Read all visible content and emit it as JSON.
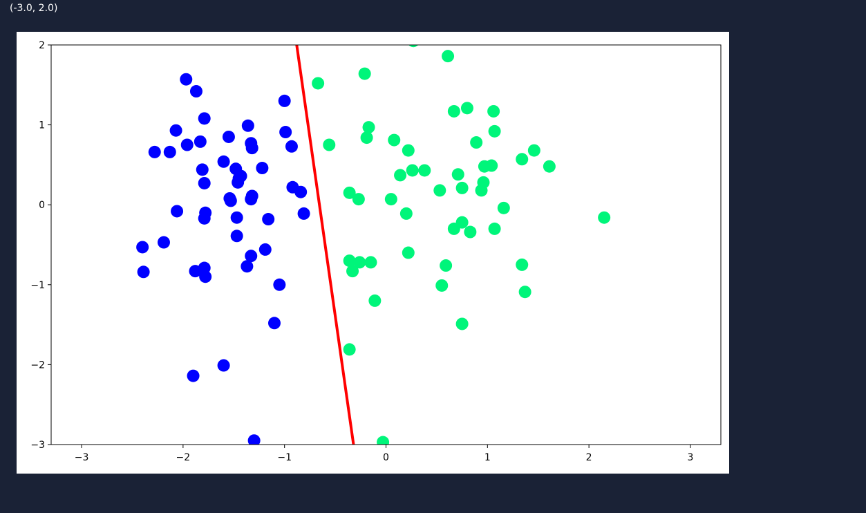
{
  "output": {
    "text": "(-3.0, 2.0)"
  },
  "chart_data": {
    "type": "scatter",
    "title": "",
    "xlabel": "",
    "ylabel": "",
    "xlim": [
      -3.3,
      3.3
    ],
    "ylim": [
      -3,
      2
    ],
    "grid": false,
    "x_ticks": [
      -3,
      -2,
      -1,
      0,
      1,
      2,
      3
    ],
    "x_tick_labels": [
      "−3",
      "−2",
      "−1",
      "0",
      "1",
      "2",
      "3"
    ],
    "y_ticks": [
      -3,
      -2,
      -1,
      0,
      1,
      2
    ],
    "y_tick_labels": [
      "−3",
      "−2",
      "−1",
      "0",
      "1",
      "2"
    ],
    "series": [
      {
        "color": "#0000ff",
        "points": [
          [
            -1.97,
            1.57
          ],
          [
            -1.87,
            1.42
          ],
          [
            -1.79,
            1.08
          ],
          [
            -1.0,
            1.3
          ],
          [
            -2.07,
            0.93
          ],
          [
            -1.96,
            0.75
          ],
          [
            -1.83,
            0.79
          ],
          [
            -2.28,
            0.66
          ],
          [
            -2.13,
            0.66
          ],
          [
            -1.55,
            0.85
          ],
          [
            -1.36,
            0.99
          ],
          [
            -1.33,
            0.77
          ],
          [
            -1.32,
            0.71
          ],
          [
            -0.99,
            0.91
          ],
          [
            -0.93,
            0.73
          ],
          [
            -1.81,
            0.44
          ],
          [
            -1.6,
            0.54
          ],
          [
            -1.48,
            0.45
          ],
          [
            -1.45,
            0.33
          ],
          [
            -1.43,
            0.36
          ],
          [
            -1.46,
            0.28
          ],
          [
            -1.22,
            0.46
          ],
          [
            -1.79,
            0.27
          ],
          [
            -0.92,
            0.22
          ],
          [
            -0.84,
            0.16
          ],
          [
            -1.54,
            0.08
          ],
          [
            -1.53,
            0.05
          ],
          [
            -1.32,
            0.11
          ],
          [
            -1.33,
            0.07
          ],
          [
            -2.06,
            -0.08
          ],
          [
            -1.78,
            -0.1
          ],
          [
            -1.79,
            -0.17
          ],
          [
            -1.47,
            -0.16
          ],
          [
            -1.16,
            -0.18
          ],
          [
            -0.81,
            -0.11
          ],
          [
            -1.47,
            -0.39
          ],
          [
            -2.4,
            -0.53
          ],
          [
            -2.19,
            -0.47
          ],
          [
            -1.19,
            -0.56
          ],
          [
            -1.33,
            -0.64
          ],
          [
            -1.37,
            -0.77
          ],
          [
            -2.39,
            -0.84
          ],
          [
            -1.88,
            -0.83
          ],
          [
            -1.79,
            -0.79
          ],
          [
            -1.78,
            -0.9
          ],
          [
            -1.05,
            -1.0
          ],
          [
            -1.1,
            -1.48
          ],
          [
            -1.6,
            -2.01
          ],
          [
            -1.9,
            -2.14
          ],
          [
            -1.3,
            -2.95
          ]
        ]
      },
      {
        "color": "#00f57a",
        "points": [
          [
            0.27,
            2.05
          ],
          [
            0.61,
            1.86
          ],
          [
            -0.21,
            1.64
          ],
          [
            -0.67,
            1.52
          ],
          [
            0.67,
            1.17
          ],
          [
            0.8,
            1.21
          ],
          [
            1.06,
            1.17
          ],
          [
            -0.17,
            0.97
          ],
          [
            -0.19,
            0.84
          ],
          [
            0.08,
            0.81
          ],
          [
            0.22,
            0.68
          ],
          [
            0.89,
            0.78
          ],
          [
            1.07,
            0.92
          ],
          [
            -0.56,
            0.75
          ],
          [
            1.34,
            0.57
          ],
          [
            1.46,
            0.68
          ],
          [
            1.61,
            0.48
          ],
          [
            0.97,
            0.48
          ],
          [
            1.04,
            0.49
          ],
          [
            0.14,
            0.37
          ],
          [
            0.26,
            0.43
          ],
          [
            0.38,
            0.43
          ],
          [
            0.71,
            0.38
          ],
          [
            0.96,
            0.28
          ],
          [
            0.94,
            0.18
          ],
          [
            0.53,
            0.18
          ],
          [
            0.75,
            0.21
          ],
          [
            -0.36,
            0.15
          ],
          [
            -0.27,
            0.07
          ],
          [
            0.05,
            0.07
          ],
          [
            1.16,
            -0.04
          ],
          [
            0.2,
            -0.11
          ],
          [
            2.15,
            -0.16
          ],
          [
            0.67,
            -0.3
          ],
          [
            0.75,
            -0.22
          ],
          [
            0.83,
            -0.34
          ],
          [
            1.07,
            -0.3
          ],
          [
            0.22,
            -0.6
          ],
          [
            -0.36,
            -0.7
          ],
          [
            -0.26,
            -0.72
          ],
          [
            -0.15,
            -0.72
          ],
          [
            -0.33,
            -0.83
          ],
          [
            0.59,
            -0.76
          ],
          [
            1.34,
            -0.75
          ],
          [
            0.55,
            -1.01
          ],
          [
            1.37,
            -1.09
          ],
          [
            -0.11,
            -1.2
          ],
          [
            0.75,
            -1.49
          ],
          [
            -0.36,
            -1.81
          ],
          [
            -0.03,
            -2.97
          ]
        ]
      }
    ],
    "line": {
      "color": "#ff0000",
      "x": [
        -0.88,
        -0.32
      ],
      "y": [
        2.0,
        -3.0
      ]
    }
  }
}
